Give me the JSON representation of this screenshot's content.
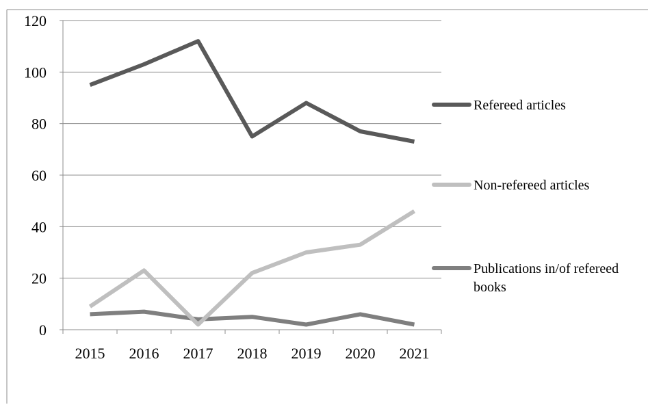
{
  "chart_data": {
    "type": "line",
    "title": "",
    "xlabel": "",
    "ylabel": "",
    "categories": [
      "2015",
      "2016",
      "2017",
      "2018",
      "2019",
      "2020",
      "2021"
    ],
    "ylim": [
      0,
      120
    ],
    "yticks": [
      0,
      20,
      40,
      60,
      80,
      100,
      120
    ],
    "grid": true,
    "legend_position": "right",
    "series": [
      {
        "name": "Refereed articles",
        "values": [
          95,
          103,
          112,
          75,
          88,
          77,
          73
        ],
        "color": "#595959"
      },
      {
        "name": "Non-refereed articles",
        "values": [
          9,
          23,
          2,
          22,
          30,
          33,
          46
        ],
        "color": "#bfbfbf"
      },
      {
        "name": "Publications in/of refereed books",
        "name_lines": [
          "Publications in/of refereed",
          "books"
        ],
        "values": [
          6,
          7,
          4,
          5,
          2,
          6,
          2
        ],
        "color": "#7f7f7f"
      }
    ]
  }
}
